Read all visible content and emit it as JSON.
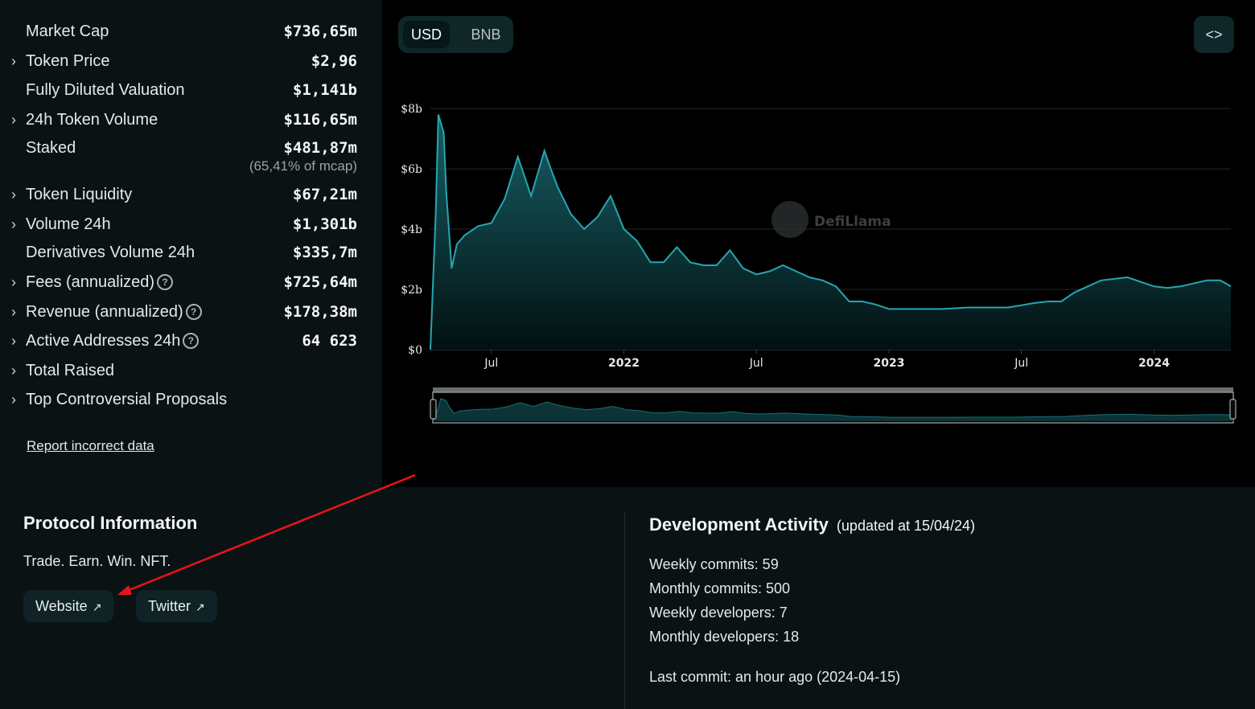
{
  "stats": [
    {
      "label": "Market Cap",
      "value": "$736,65m",
      "expandable": false
    },
    {
      "label": "Token Price",
      "value": "$2,96",
      "expandable": true
    },
    {
      "label": "Fully Diluted Valuation",
      "value": "$1,141b",
      "expandable": false
    },
    {
      "label": "24h Token Volume",
      "value": "$116,65m",
      "expandable": true
    },
    {
      "label": "Staked",
      "value": "$481,87m",
      "sub": "(65,41% of mcap)",
      "expandable": false
    },
    {
      "label": "Token Liquidity",
      "value": "$67,21m",
      "expandable": true
    },
    {
      "label": "Volume 24h",
      "value": "$1,301b",
      "expandable": true
    },
    {
      "label": "Derivatives Volume 24h",
      "value": "$335,7m",
      "expandable": false
    },
    {
      "label": "Fees (annualized)",
      "value": "$725,64m",
      "expandable": true,
      "help": true
    },
    {
      "label": "Revenue (annualized)",
      "value": "$178,38m",
      "expandable": true,
      "help": true
    },
    {
      "label": "Active Addresses 24h",
      "value": "64 623",
      "expandable": true,
      "help": true
    },
    {
      "label": "Total Raised",
      "value": "",
      "expandable": true
    },
    {
      "label": "Top Controversial Proposals",
      "value": "",
      "expandable": true
    }
  ],
  "report_link": "Report incorrect data",
  "currency_toggle": {
    "options": [
      "USD",
      "BNB"
    ],
    "selected": "USD"
  },
  "embed_icon": "code-embed-icon",
  "watermark": "DefiLlama",
  "chart_data": {
    "type": "area",
    "y_ticks": [
      "$0",
      "$2b",
      "$4b",
      "$6b",
      "$8b"
    ],
    "x_ticks": [
      "Jul",
      "2022",
      "Jul",
      "2023",
      "Jul",
      "2024"
    ],
    "ylim": [
      0,
      8
    ],
    "unit": "b",
    "color": "#26a6b0",
    "x": [
      2021.27,
      2021.29,
      2021.3,
      2021.32,
      2021.33,
      2021.35,
      2021.37,
      2021.4,
      2021.45,
      2021.5,
      2021.55,
      2021.6,
      2021.65,
      2021.7,
      2021.72,
      2021.75,
      2021.8,
      2021.85,
      2021.9,
      2021.95,
      2022.0,
      2022.05,
      2022.1,
      2022.15,
      2022.2,
      2022.25,
      2022.3,
      2022.35,
      2022.4,
      2022.45,
      2022.5,
      2022.55,
      2022.6,
      2022.65,
      2022.7,
      2022.75,
      2022.8,
      2022.85,
      2022.9,
      2022.95,
      2023.0,
      2023.1,
      2023.2,
      2023.3,
      2023.35,
      2023.45,
      2023.55,
      2023.6,
      2023.65,
      2023.7,
      2023.8,
      2023.9,
      2024.0,
      2024.05,
      2024.1,
      2024.2,
      2024.25,
      2024.29
    ],
    "y": [
      0,
      4.5,
      7.8,
      7.2,
      5.2,
      2.7,
      3.5,
      3.8,
      4.1,
      4.2,
      5.0,
      6.4,
      5.1,
      6.6,
      6.1,
      5.4,
      4.5,
      4.0,
      4.4,
      5.1,
      4.0,
      3.6,
      2.9,
      2.9,
      3.4,
      2.9,
      2.8,
      2.8,
      3.3,
      2.7,
      2.5,
      2.6,
      2.8,
      2.6,
      2.4,
      2.3,
      2.1,
      1.6,
      1.6,
      1.5,
      1.35,
      1.35,
      1.35,
      1.4,
      1.4,
      1.4,
      1.55,
      1.6,
      1.6,
      1.9,
      2.3,
      2.4,
      2.1,
      2.05,
      2.1,
      2.3,
      2.3,
      2.1
    ]
  },
  "protocol": {
    "title": "Protocol Information",
    "description": "Trade. Earn. Win. NFT.",
    "links": [
      "Website",
      "Twitter"
    ]
  },
  "dev": {
    "title": "Development Activity",
    "updated": "(updated at 15/04/24)",
    "weekly_commits": "Weekly commits: 59",
    "monthly_commits": "Monthly commits: 500",
    "weekly_devs": "Weekly developers: 7",
    "monthly_devs": "Monthly developers: 18",
    "last_commit": "Last commit:  an hour ago (2024-04-15)"
  }
}
